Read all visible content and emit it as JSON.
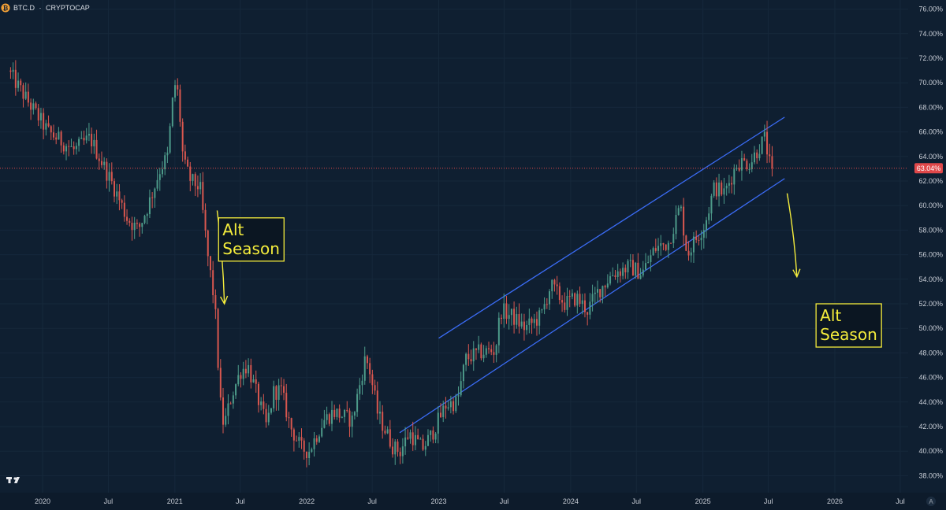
{
  "header": {
    "symbol": "BTC.D",
    "separator": "·",
    "exchange": "CRYPTOCAP",
    "symbol_icon": "bitcoin-icon"
  },
  "colors": {
    "background": "#0f1f31",
    "up": "#4d9b8a",
    "down": "#d9574f",
    "channel": "#3b6cf6",
    "annotation": "#f4ec3c",
    "price_label_bg": "#e0484a"
  },
  "chart_data": {
    "type": "candlestick",
    "timeframe": "weekly",
    "ylim": [
      37,
      77
    ],
    "y_ticks": [
      "38.00%",
      "40.00%",
      "42.00%",
      "44.00%",
      "46.00%",
      "48.00%",
      "50.00%",
      "52.00%",
      "54.00%",
      "56.00%",
      "58.00%",
      "60.00%",
      "62.00%",
      "64.00%",
      "66.00%",
      "68.00%",
      "70.00%",
      "72.00%",
      "74.00%",
      "76.00%"
    ],
    "x_ticks": [
      {
        "label": "2020",
        "date": "2020-01-01"
      },
      {
        "label": "Jul",
        "date": "2020-07-01"
      },
      {
        "label": "2021",
        "date": "2021-01-01"
      },
      {
        "label": "Jul",
        "date": "2021-07-01"
      },
      {
        "label": "2022",
        "date": "2022-01-01"
      },
      {
        "label": "Jul",
        "date": "2022-07-01"
      },
      {
        "label": "2023",
        "date": "2023-01-01"
      },
      {
        "label": "Jul",
        "date": "2023-07-01"
      },
      {
        "label": "2024",
        "date": "2024-01-01"
      },
      {
        "label": "Jul",
        "date": "2024-07-01"
      },
      {
        "label": "2025",
        "date": "2025-01-01"
      },
      {
        "label": "Jul",
        "date": "2025-07-01"
      },
      {
        "label": "2026",
        "date": "2026-01-01"
      },
      {
        "label": "Jul",
        "date": "2026-07-01"
      }
    ],
    "last_price": 63.04,
    "last_price_label": "63.04%",
    "anchors": [
      [
        "2019-10-01",
        71.0
      ],
      [
        "2019-12-01",
        68.2
      ],
      [
        "2020-01-20",
        66.0
      ],
      [
        "2020-04-01",
        64.5
      ],
      [
        "2020-05-15",
        65.5
      ],
      [
        "2020-07-20",
        61.5
      ],
      [
        "2020-08-25",
        59.0
      ],
      [
        "2020-09-25",
        58.0
      ],
      [
        "2020-10-25",
        60.2
      ],
      [
        "2020-11-25",
        63.0
      ],
      [
        "2020-12-15",
        64.0
      ],
      [
        "2021-01-03",
        70.0
      ],
      [
        "2021-01-14",
        69.0
      ],
      [
        "2021-01-28",
        63.5
      ],
      [
        "2021-02-18",
        62.0
      ],
      [
        "2021-03-15",
        61.5
      ],
      [
        "2021-04-05",
        56.0
      ],
      [
        "2021-04-25",
        52.0
      ],
      [
        "2021-05-10",
        44.0
      ],
      [
        "2021-05-20",
        42.0
      ],
      [
        "2021-06-10",
        44.5
      ],
      [
        "2021-07-05",
        46.5
      ],
      [
        "2021-07-25",
        47.0
      ],
      [
        "2021-08-20",
        44.5
      ],
      [
        "2021-09-15",
        42.0
      ],
      [
        "2021-10-05",
        44.8
      ],
      [
        "2021-10-25",
        45.0
      ],
      [
        "2021-11-20",
        42.0
      ],
      [
        "2021-12-20",
        40.2
      ],
      [
        "2022-01-10",
        40.0
      ],
      [
        "2022-02-20",
        42.5
      ],
      [
        "2022-03-20",
        43.2
      ],
      [
        "2022-05-10",
        42.5
      ],
      [
        "2022-06-15",
        47.5
      ],
      [
        "2022-06-25",
        47.0
      ],
      [
        "2022-07-20",
        43.0
      ],
      [
        "2022-09-01",
        40.3
      ],
      [
        "2022-09-20",
        40.0
      ],
      [
        "2022-10-15",
        41.5
      ],
      [
        "2022-11-20",
        40.2
      ],
      [
        "2022-12-15",
        41.3
      ],
      [
        "2023-01-25",
        43.8
      ],
      [
        "2023-02-25",
        44.0
      ],
      [
        "2023-03-20",
        47.5
      ],
      [
        "2023-04-25",
        48.0
      ],
      [
        "2023-06-10",
        48.2
      ],
      [
        "2023-06-25",
        51.5
      ],
      [
        "2023-07-25",
        51.0
      ],
      [
        "2023-09-01",
        50.0
      ],
      [
        "2023-10-15",
        51.0
      ],
      [
        "2023-11-10",
        53.5
      ],
      [
        "2023-12-20",
        52.0
      ],
      [
        "2024-01-20",
        52.5
      ],
      [
        "2024-02-20",
        51.5
      ],
      [
        "2024-03-20",
        53.0
      ],
      [
        "2024-05-01",
        54.5
      ],
      [
        "2024-06-15",
        55.0
      ],
      [
        "2024-07-20",
        54.5
      ],
      [
        "2024-08-25",
        56.5
      ],
      [
        "2024-10-01",
        57.0
      ],
      [
        "2024-11-03",
        60.0
      ],
      [
        "2024-11-22",
        56.0
      ],
      [
        "2024-12-10",
        57.0
      ],
      [
        "2025-01-10",
        58.5
      ],
      [
        "2025-02-05",
        61.5
      ],
      [
        "2025-03-05",
        61.0
      ],
      [
        "2025-04-10",
        63.5
      ],
      [
        "2025-05-15",
        63.5
      ],
      [
        "2025-06-10",
        64.8
      ],
      [
        "2025-06-25",
        65.5
      ],
      [
        "2025-07-10",
        63.04
      ]
    ],
    "channel": {
      "upper": [
        [
          "2023-01-01",
          49.2
        ],
        [
          "2025-08-15",
          67.2
        ]
      ],
      "lower": [
        [
          "2022-09-15",
          41.5
        ],
        [
          "2025-08-15",
          62.2
        ]
      ]
    },
    "annotations": [
      {
        "line1": "Alt",
        "line2": "Season",
        "at": [
          "2021-05-02",
          59.0
        ]
      },
      {
        "line1": "Alt",
        "line2": "Season",
        "at": [
          "2025-11-10",
          52.0
        ]
      }
    ],
    "arrows": [
      {
        "from": [
          "2021-04-28",
          59.6
        ],
        "to": [
          "2021-05-18",
          52.0
        ]
      },
      {
        "from": [
          "2025-08-22",
          61.0
        ],
        "to": [
          "2025-09-18",
          54.2
        ]
      }
    ]
  }
}
